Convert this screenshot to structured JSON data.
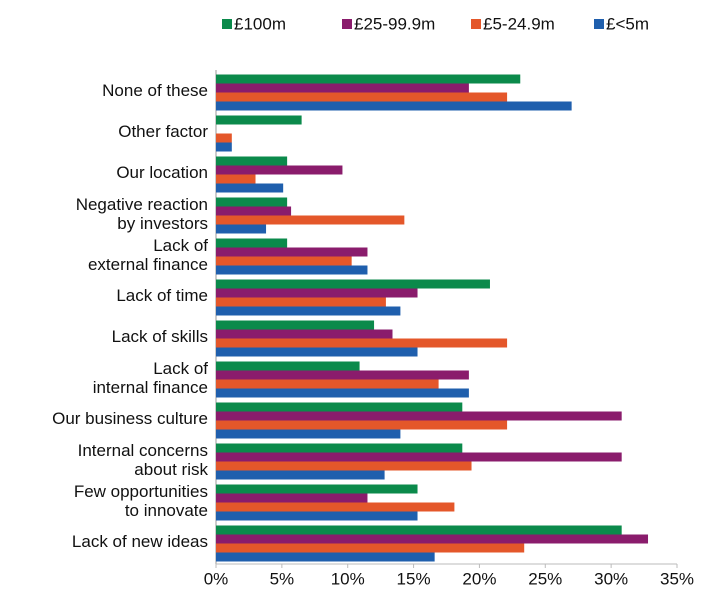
{
  "chart_data": {
    "type": "bar",
    "orientation": "horizontal",
    "categories": [
      "None of these",
      "Other  factor",
      "Our location",
      "Negative reaction\nby investors",
      "Lack of\nexternal finance",
      "Lack of time",
      "Lack of skills",
      "Lack of\ninternal finance",
      "Our business culture",
      "Internal concerns\nabout risk",
      "Few opportunities\nto innovate",
      "Lack of new ideas"
    ],
    "series": [
      {
        "name": "£100m",
        "color": "#0b8a4b",
        "values": [
          23.1,
          6.5,
          5.4,
          5.4,
          5.4,
          20.8,
          12,
          10.9,
          18.7,
          18.7,
          15.3,
          30.8
        ]
      },
      {
        "name": "£25-99.9m",
        "color": "#8a1c6c",
        "values": [
          19.2,
          0,
          9.6,
          5.7,
          11.5,
          15.3,
          13.4,
          19.2,
          30.8,
          30.8,
          11.5,
          32.8
        ]
      },
      {
        "name": "£5-24.9m",
        "color": "#e4572a",
        "values": [
          22.1,
          1.2,
          3,
          14.3,
          10.3,
          12.9,
          22.1,
          16.9,
          22.1,
          19.4,
          18.1,
          23.4
        ]
      },
      {
        "name": "£<5m",
        "color": "#1f5fad",
        "values": [
          27,
          1.2,
          5.1,
          3.8,
          11.5,
          14,
          15.3,
          19.2,
          14,
          12.8,
          15.3,
          16.6
        ]
      }
    ],
    "xlim": [
      0,
      35
    ],
    "xticks": [
      {
        "value": 0,
        "label": "0%"
      },
      {
        "value": 5,
        "label": "5%"
      },
      {
        "value": 10,
        "label": "10%"
      },
      {
        "value": 15,
        "label": "15%"
      },
      {
        "value": 20,
        "label": "20%"
      },
      {
        "value": 25,
        "label": "25%"
      },
      {
        "value": 30,
        "label": "30%"
      },
      {
        "value": 35,
        "label": "35%"
      }
    ],
    "legend": "top"
  }
}
